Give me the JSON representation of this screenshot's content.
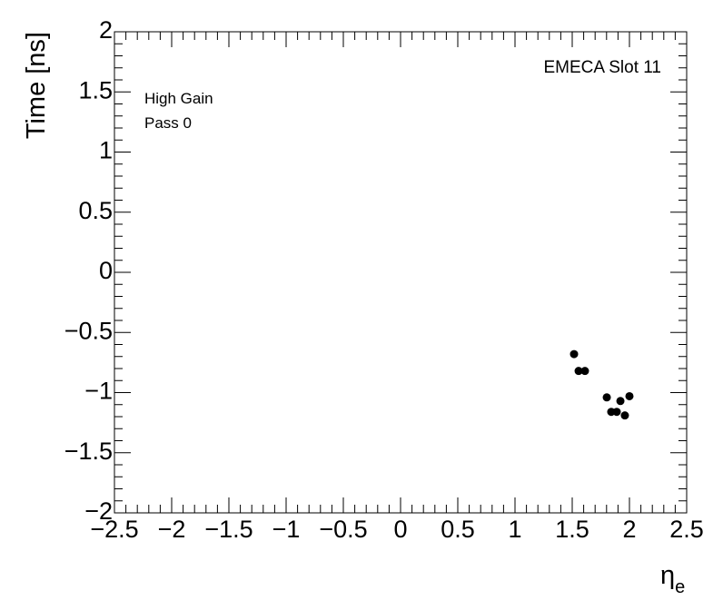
{
  "chart_data": {
    "type": "scatter",
    "ylabel": "Time [ns]",
    "xlabel": "η",
    "xlabel_subscript": "e",
    "annotations": [
      "EMECA Slot 11",
      "High Gain",
      "Pass 0"
    ],
    "color": "#000000",
    "x": [
      1.516,
      1.556,
      1.611,
      1.802,
      1.841,
      1.889,
      1.921,
      1.96,
      2.0
    ],
    "values": [
      -0.68,
      -0.82,
      -0.82,
      -1.04,
      -1.16,
      -1.16,
      -1.07,
      -1.19,
      -1.03
    ],
    "xlim": [
      -2.5,
      2.5
    ],
    "ylim": [
      -2,
      2
    ],
    "xticks": [
      {
        "value": -2.5,
        "label": "−2.5"
      },
      {
        "value": -2,
        "label": "−2"
      },
      {
        "value": -1.5,
        "label": "−1.5"
      },
      {
        "value": -1,
        "label": "−1"
      },
      {
        "value": -0.5,
        "label": "−0.5"
      },
      0,
      0.5,
      1,
      1.5,
      2,
      2.5
    ],
    "yticks": [
      {
        "value": -2,
        "label": "−2"
      },
      {
        "value": -1.5,
        "label": "−1.5"
      },
      {
        "value": -1,
        "label": "−1"
      },
      {
        "value": -0.5,
        "label": "−0.5"
      },
      0,
      0.5,
      1,
      1.5,
      2
    ]
  }
}
